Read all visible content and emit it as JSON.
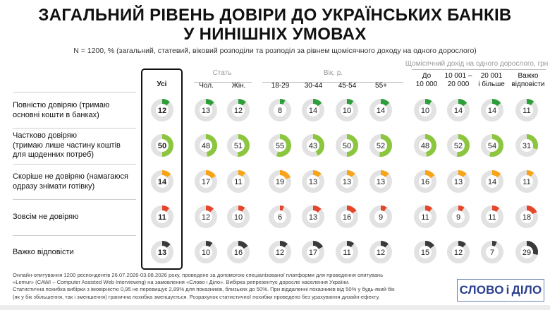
{
  "title": {
    "line1": "ЗАГАЛЬНИЙ РІВЕНЬ ДОВІРИ ДО УКРАЇНСЬКИХ БАНКІВ",
    "line2": "У НИНІШНІХ УМОВАХ"
  },
  "subtitle": "N = 1200, % (загальний, статевий, віковий розподіли та розподіл за рівнем щомісячного доходу на одного дорослого)",
  "groups": {
    "gender": "Стать",
    "age": "Вік, р.",
    "income": "Щомісячний дохід на одного дорослого, грн"
  },
  "colors": {
    "fully_trust": "#2e9e3a",
    "partly_trust": "#8cc63f",
    "rather_distrust": "#f7a418",
    "distrust": "#e5462b",
    "hard_to_say": "#3a3a3a",
    "track": "#e2e2e2"
  },
  "chart_data": {
    "type": "donut-table",
    "columns": [
      {
        "key": "all",
        "label": [
          "Усі"
        ]
      },
      {
        "key": "male",
        "label": [
          "Чол."
        ]
      },
      {
        "key": "female",
        "label": [
          "Жін."
        ]
      },
      {
        "key": "age18_29",
        "label": [
          "18-29"
        ]
      },
      {
        "key": "age30_44",
        "label": [
          "30-44"
        ]
      },
      {
        "key": "age45_54",
        "label": [
          "45-54"
        ]
      },
      {
        "key": "age55",
        "label": [
          "55+"
        ]
      },
      {
        "key": "inc1",
        "label": [
          "До",
          "10 000"
        ]
      },
      {
        "key": "inc2",
        "label": [
          "10 001 –",
          "20 000"
        ]
      },
      {
        "key": "inc3",
        "label": [
          "20 001",
          "і більше"
        ]
      },
      {
        "key": "inc4",
        "label": [
          "Важко",
          "відповісти"
        ]
      }
    ],
    "rows": [
      {
        "label": [
          "Повністю довіряю (тримаю",
          "основні кошти в банках)"
        ],
        "color_key": "fully_trust",
        "values": [
          12,
          13,
          12,
          8,
          14,
          10,
          14,
          10,
          14,
          14,
          11
        ]
      },
      {
        "label": [
          "Частково довіряю",
          "(тримаю лише частину коштів",
          "для щоденних потреб)"
        ],
        "color_key": "partly_trust",
        "values": [
          50,
          48,
          51,
          55,
          43,
          50,
          52,
          48,
          52,
          54,
          31
        ]
      },
      {
        "label": [
          "Скоріше не довіряю (намагаюся",
          "одразу знімати готівку)"
        ],
        "color_key": "rather_distrust",
        "values": [
          14,
          17,
          11,
          19,
          13,
          13,
          13,
          16,
          13,
          14,
          11
        ]
      },
      {
        "label": [
          "Зовсім не довіряю"
        ],
        "color_key": "distrust",
        "values": [
          11,
          12,
          10,
          6,
          13,
          16,
          9,
          11,
          9,
          11,
          18
        ]
      },
      {
        "label": [
          "Важко відповісти"
        ],
        "color_key": "hard_to_say",
        "values": [
          13,
          10,
          16,
          12,
          17,
          11,
          12,
          15,
          12,
          7,
          29
        ]
      }
    ],
    "unit": "%"
  },
  "footer": {
    "line1": "Онлайн-опитування 1200 респондентів 26.07.2026-03.08.2026 року, проведене за допомогою спеціалізованої платформи для проведення опитувань",
    "line2": "«Lemur» (CAWI – Computer Assisted Web Interviewing) на замовлення «Слово і Діло». Вибірка репрезентує доросле населення України.",
    "line3": "Статистична похибка вибірки з імовірністю 0,95 не перевищує 2,89% для показників, близьких до 50%. При віддаленні показників від 50% у будь-який бік",
    "line4": "(як у бік збільшення, так і зменшення) гранична похибка зменшується. Розрахунок статистичної похибки проведено без урахування дизайн-ефекту."
  },
  "logo": {
    "left": "СЛОВО",
    "mid": "і",
    "right": "ДІЛО"
  }
}
